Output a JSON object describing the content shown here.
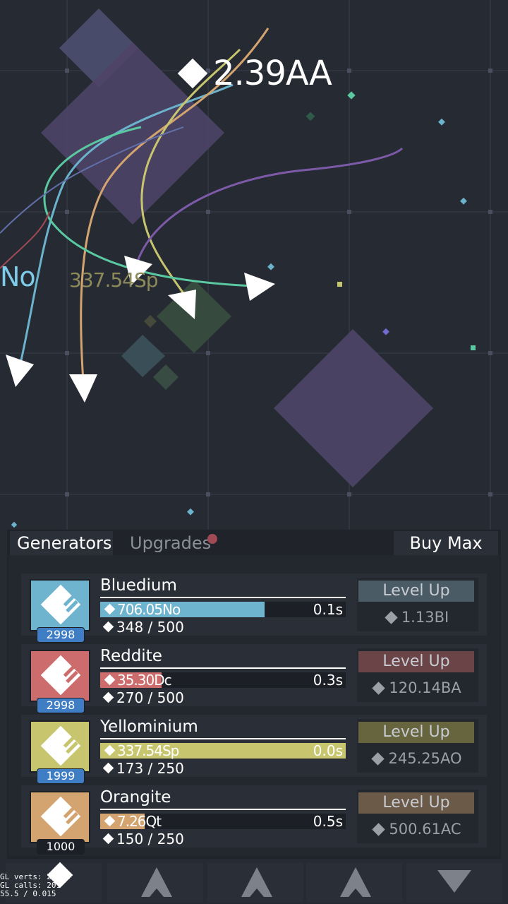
{
  "currency": {
    "icon": "diamond-icon",
    "value": "2.39AA"
  },
  "floating_texts": [
    "No",
    "337.54Sp"
  ],
  "tabs": {
    "generators": "Generators",
    "upgrades": "Upgrades",
    "buy_max": "Buy Max"
  },
  "generators": [
    {
      "name": "Bluedium",
      "icon": "generator-icon",
      "color": "#6fb4cf",
      "count": "2998",
      "progress_text": "706.05No",
      "progress": 0.67,
      "time": "0.1s",
      "level": "348 / 500",
      "level_up": "Level Up",
      "level_btn_color": "#4a5b66",
      "cost": "1.13BI"
    },
    {
      "name": "Reddite",
      "icon": "generator-icon",
      "color": "#cd6c6c",
      "count": "2998",
      "progress_text": "35.30Dc",
      "progress": 0.25,
      "time": "0.3s",
      "level": "270 / 500",
      "level_up": "Level Up",
      "level_btn_color": "#6b4448",
      "cost": "120.14BA"
    },
    {
      "name": "Yellominium",
      "icon": "generator-icon",
      "color": "#c7c66e",
      "count": "1999",
      "progress_text": "337.54Sp",
      "progress": 1.0,
      "time": "0.0s",
      "level": "173 / 250",
      "level_up": "Level Up",
      "level_btn_color": "#66653e",
      "cost": "245.25AO"
    },
    {
      "name": "Orangite",
      "icon": "generator-icon",
      "color": "#d3a46f",
      "count": "1000",
      "progress_text": "7.26Qt",
      "progress": 0.18,
      "time": "0.5s",
      "level": "150 / 250",
      "level_up": "Level Up",
      "level_btn_color": "#6b5a47",
      "cost": "500.61AC"
    }
  ],
  "nav": [
    "home-diamond-icon",
    "arrow-up-icon",
    "arrow-up-icon",
    "arrow-up-icon",
    "gem-icon"
  ],
  "debug": {
    "line1": "GL verts: 26982",
    "line2": "GL calls: 201",
    "line3": "55.5 / 0.015"
  }
}
